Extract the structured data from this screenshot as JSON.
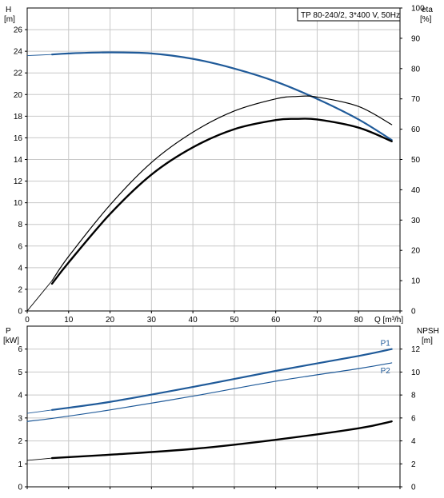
{
  "chart_data": [
    {
      "type": "line",
      "title": "TP 80-240/2, 3*400 V, 50Hz",
      "x_label": "Q [m³/h]",
      "xlim": [
        0,
        90
      ],
      "x_ticks": [
        0,
        10,
        20,
        30,
        40,
        50,
        60,
        70,
        80,
        90
      ],
      "x_tick_labels": [
        "0",
        "10",
        "20",
        "30",
        "40",
        "50",
        "60",
        "70",
        "80",
        ""
      ],
      "y_left": {
        "label_line1": "H",
        "label_line2": "[m]",
        "ylim": [
          0,
          28
        ],
        "ticks": [
          0,
          2,
          4,
          6,
          8,
          10,
          12,
          14,
          16,
          18,
          20,
          22,
          24,
          26
        ]
      },
      "y_right": {
        "label_line1": "eta",
        "label_line2": "[%]",
        "ylim": [
          0,
          100
        ],
        "ticks": [
          0,
          10,
          20,
          30,
          40,
          50,
          60,
          70,
          80,
          90,
          100
        ]
      },
      "series": [
        {
          "axis": "left",
          "color": "#1f5a99",
          "width": 2.2,
          "thin_x": [
            0,
            6
          ],
          "x": [
            0,
            6,
            10,
            20,
            30,
            40,
            50,
            60,
            70,
            80,
            88
          ],
          "y": [
            23.6,
            23.7,
            23.8,
            23.9,
            23.8,
            23.3,
            22.4,
            21.2,
            19.6,
            17.7,
            15.8
          ]
        },
        {
          "axis": "right",
          "color": "#000000",
          "width": 1.2,
          "thin_x": [
            0,
            6
          ],
          "x": [
            0,
            6,
            10,
            20,
            30,
            40,
            50,
            60,
            65,
            70,
            80,
            88
          ],
          "y": [
            0,
            10,
            18,
            35,
            49,
            59,
            66,
            70,
            70.8,
            70.6,
            67.5,
            61.5
          ]
        },
        {
          "axis": "right",
          "color": "#000000",
          "width": 2.4,
          "start_x": 6,
          "x": [
            6,
            10,
            20,
            30,
            40,
            50,
            60,
            65,
            70,
            80,
            88
          ],
          "y": [
            9,
            16,
            32,
            45,
            54,
            60,
            63,
            63.4,
            63.2,
            60.5,
            56
          ]
        }
      ]
    },
    {
      "type": "line",
      "xlim": [
        0,
        90
      ],
      "x_ticks": [
        0,
        10,
        20,
        30,
        40,
        50,
        60,
        70,
        80,
        90
      ],
      "y_left": {
        "label_line1": "P",
        "label_line2": "[kW]",
        "ylim": [
          0,
          7
        ],
        "ticks": [
          0,
          1,
          2,
          3,
          4,
          5,
          6
        ]
      },
      "y_right": {
        "label_line1": "NPSH",
        "label_line2": "[m]",
        "ylim": [
          0,
          14
        ],
        "ticks": [
          0,
          2,
          4,
          6,
          8,
          10,
          12
        ]
      },
      "series": [
        {
          "name": "P1",
          "axis": "left",
          "color": "#1f5a99",
          "width": 2.2,
          "thin_x": [
            0,
            6
          ],
          "x": [
            0,
            6,
            20,
            40,
            60,
            80,
            88
          ],
          "y": [
            3.2,
            3.35,
            3.7,
            4.35,
            5.05,
            5.7,
            6.0
          ]
        },
        {
          "name": "P2",
          "axis": "left",
          "color": "#1f5a99",
          "width": 1.2,
          "x": [
            0,
            6,
            20,
            40,
            60,
            80,
            88
          ],
          "y": [
            2.85,
            2.98,
            3.35,
            3.95,
            4.6,
            5.15,
            5.4
          ]
        },
        {
          "axis": "right",
          "color": "#000000",
          "width": 2.4,
          "thin_x": [
            0,
            6
          ],
          "x": [
            0,
            6,
            20,
            40,
            60,
            80,
            88
          ],
          "y": [
            2.3,
            2.5,
            2.8,
            3.3,
            4.1,
            5.1,
            5.7
          ]
        }
      ]
    }
  ]
}
